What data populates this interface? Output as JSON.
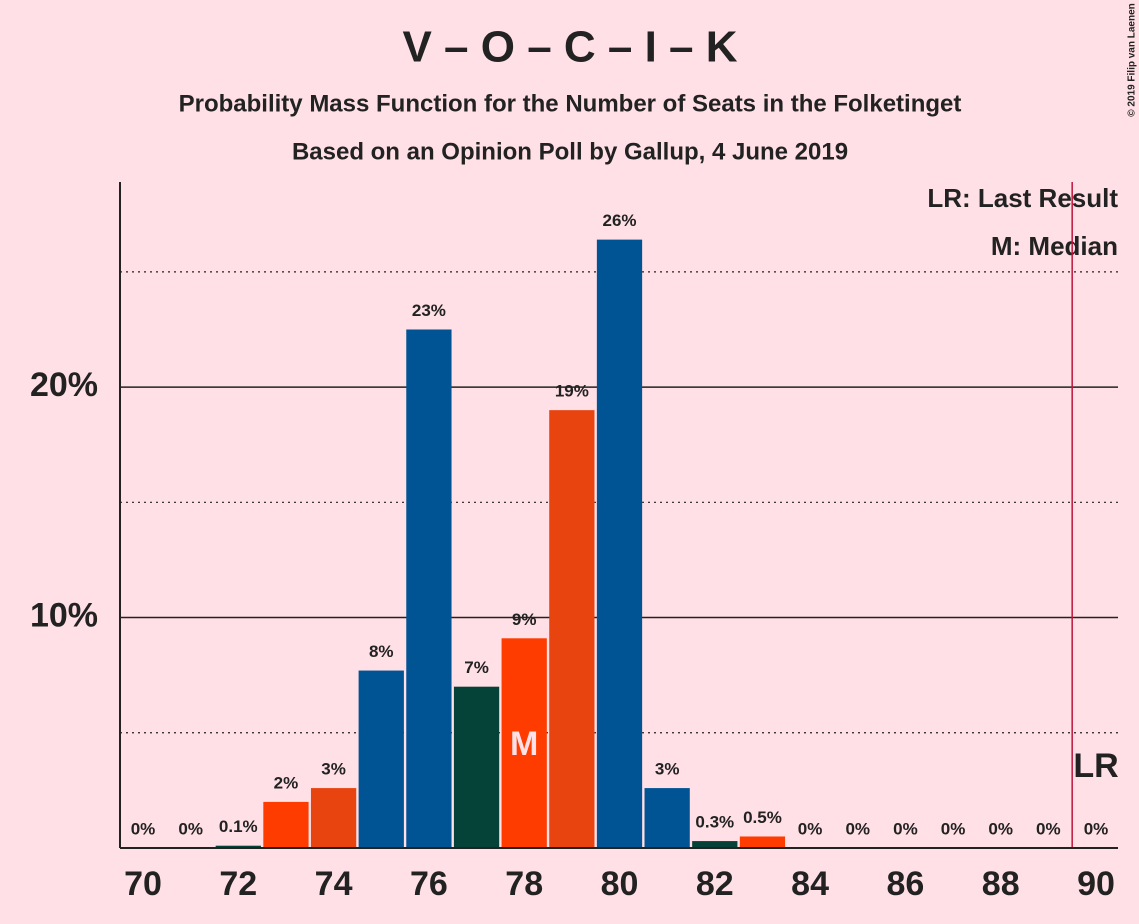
{
  "chart_data": {
    "type": "bar",
    "title": "V – O – C – I – K",
    "subtitle": "Probability Mass Function for the Number of Seats in the Folketinget",
    "subtitle2": "Based on an Opinion Poll by Gallup, 4 June 2019",
    "copyright": "© 2019 Filip van Laenen",
    "legend": [
      "LR: Last Result",
      "M: Median"
    ],
    "categories": [
      70,
      null,
      72,
      null,
      74,
      null,
      76,
      null,
      78,
      null,
      80,
      null,
      82,
      null,
      84,
      null,
      86,
      null,
      88,
      null,
      90
    ],
    "values": [
      0,
      0,
      0.1,
      2.0,
      2.6,
      7.7,
      22.5,
      7.0,
      9.1,
      19.0,
      26.4,
      2.6,
      0.3,
      0.5,
      0,
      0,
      0,
      0,
      0,
      0,
      0
    ],
    "value_labels": [
      "0%",
      "0%",
      "0.1%",
      "2%",
      "3%",
      "8%",
      "23%",
      "7%",
      "9%",
      "19%",
      "26%",
      "3%",
      "0.3%",
      "0.5%",
      "0%",
      "0%",
      "0%",
      "0%",
      "0%",
      "0%",
      "0%"
    ],
    "colors": [
      "#005493",
      "#005493",
      "#054238",
      "#ff3c00",
      "#e8440f",
      "#005493",
      "#005493",
      "#054238",
      "#ff3c00",
      "#e8440f",
      "#005493",
      "#005493",
      "#054238",
      "#ff3c00",
      "#e8440f",
      "#005493",
      "#005493",
      "#054238",
      "#ff3c00",
      "#e8440f",
      "#005493"
    ],
    "median_index": 8,
    "median_label": "M",
    "last_result_index": 20,
    "last_result_label": "LR",
    "last_result_color": "#c0143c",
    "ylim": [
      0,
      28.9
    ],
    "yticks": [
      {
        "value": 10,
        "label": "10%"
      },
      {
        "value": 20,
        "label": "20%"
      }
    ],
    "minor_yticks": [
      5,
      15,
      25
    ],
    "grid": true
  }
}
